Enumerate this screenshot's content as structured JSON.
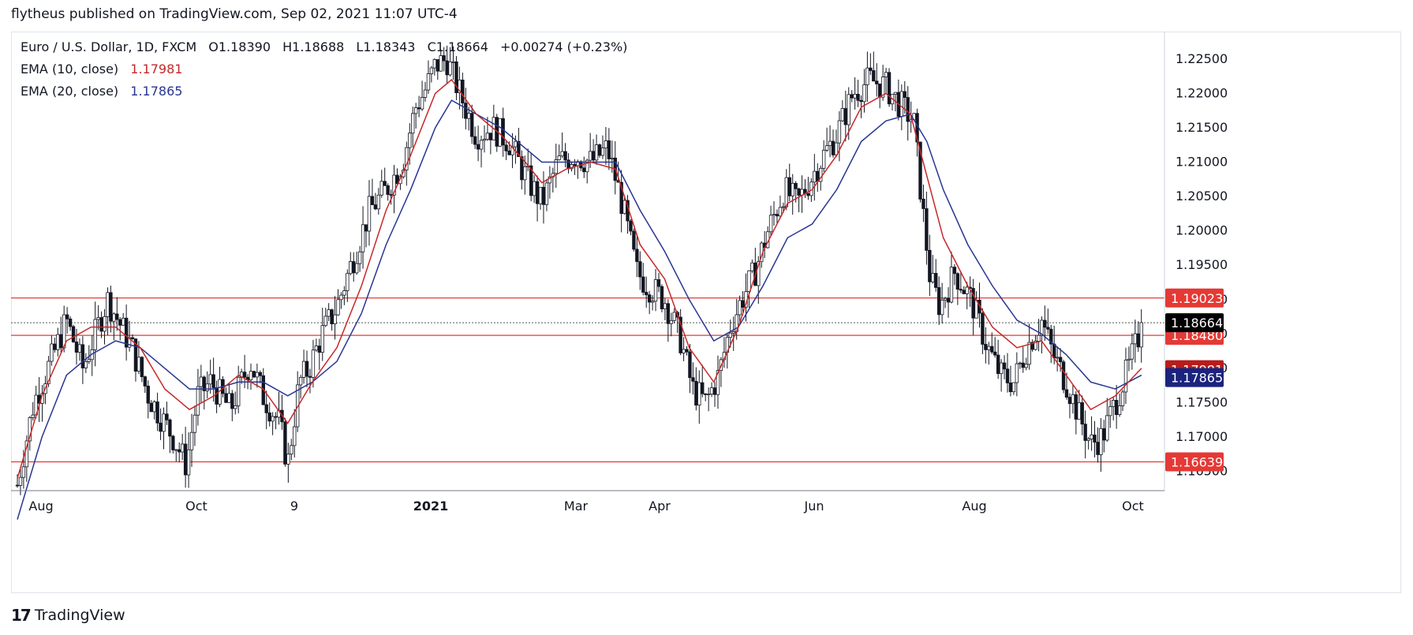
{
  "publisher_line": "flytheus published on TradingView.com, Sep 02, 2021 11:07 UTC-4",
  "footer": {
    "logo": "17",
    "brand": "TradingView"
  },
  "legend": {
    "symbol": "Euro / U.S. Dollar, 1D, FXCM",
    "open": "O1.18390",
    "high": "H1.18688",
    "low": "L1.18343",
    "close": "C1.18664",
    "change": "+0.00274 (+0.23%)",
    "ema10_label": "EMA (10, close)",
    "ema10_value": "1.17981",
    "ema20_label": "EMA (20, close)",
    "ema20_value": "1.17865"
  },
  "colors": {
    "ema10": "#c62828",
    "ema20": "#283593",
    "hline": "#e53935",
    "last": "#000000",
    "candle": "#131722",
    "ema10_tag": "#b71c1c",
    "ema20_tag": "#1a237e"
  },
  "chart_data": {
    "type": "candlestick",
    "symbol": "EURUSD",
    "timeframe": "1D",
    "y_axis_ticks": [
      "1.22500",
      "1.22000",
      "1.21500",
      "1.21000",
      "1.20500",
      "1.20000",
      "1.19500",
      "1.19000",
      "1.18500",
      "1.18000",
      "1.17500",
      "1.17000",
      "1.16500"
    ],
    "y_range": [
      1.1622,
      1.229
    ],
    "x_axis_labels": [
      "Aug",
      "Oct",
      "9",
      "2021",
      "Mar",
      "Apr",
      "Jun",
      "Aug",
      "Oct"
    ],
    "horizontal_levels": [
      {
        "value": 1.19023,
        "label": "1.19023"
      },
      {
        "value": 1.1848,
        "label": "1.18480"
      },
      {
        "value": 1.16639,
        "label": "1.16639"
      }
    ],
    "last_price": {
      "value": 1.18664,
      "label": "1.18664"
    },
    "ema_tags": [
      {
        "name": "EMA (10, close)",
        "value": 1.17981,
        "label": "1.17981"
      },
      {
        "name": "EMA (20, close)",
        "value": 1.17865,
        "label": "1.17865"
      }
    ],
    "close_path": [
      [
        0,
        1.163
      ],
      [
        10,
        1.175
      ],
      [
        22,
        1.182
      ],
      [
        30,
        1.187
      ],
      [
        40,
        1.18
      ],
      [
        55,
        1.19
      ],
      [
        70,
        1.183
      ],
      [
        80,
        1.176
      ],
      [
        95,
        1.17
      ],
      [
        103,
        1.166
      ],
      [
        110,
        1.176
      ],
      [
        118,
        1.178
      ],
      [
        130,
        1.174
      ],
      [
        142,
        1.181
      ],
      [
        150,
        1.176
      ],
      [
        160,
        1.172
      ],
      [
        165,
        1.166
      ],
      [
        172,
        1.178
      ],
      [
        178,
        1.18
      ],
      [
        186,
        1.185
      ],
      [
        195,
        1.189
      ],
      [
        205,
        1.196
      ],
      [
        215,
        1.203
      ],
      [
        225,
        1.206
      ],
      [
        235,
        1.21
      ],
      [
        243,
        1.218
      ],
      [
        248,
        1.22
      ],
      [
        255,
        1.224
      ],
      [
        262,
        1.225
      ],
      [
        270,
        1.22
      ],
      [
        280,
        1.214
      ],
      [
        290,
        1.215
      ],
      [
        300,
        1.213
      ],
      [
        310,
        1.208
      ],
      [
        320,
        1.204
      ],
      [
        330,
        1.21
      ],
      [
        340,
        1.211
      ],
      [
        350,
        1.21
      ],
      [
        360,
        1.212
      ],
      [
        368,
        1.205
      ],
      [
        378,
        1.194
      ],
      [
        385,
        1.192
      ],
      [
        395,
        1.19
      ],
      [
        405,
        1.184
      ],
      [
        412,
        1.177
      ],
      [
        420,
        1.175
      ],
      [
        428,
        1.179
      ],
      [
        435,
        1.186
      ],
      [
        442,
        1.19
      ],
      [
        450,
        1.194
      ],
      [
        458,
        1.2
      ],
      [
        468,
        1.206
      ],
      [
        476,
        1.204
      ],
      [
        485,
        1.208
      ],
      [
        492,
        1.211
      ],
      [
        500,
        1.214
      ],
      [
        510,
        1.22
      ],
      [
        520,
        1.222
      ],
      [
        530,
        1.221
      ],
      [
        540,
        1.218
      ],
      [
        547,
        1.216
      ],
      [
        552,
        1.204
      ],
      [
        557,
        1.193
      ],
      [
        563,
        1.189
      ],
      [
        572,
        1.194
      ],
      [
        582,
        1.19
      ],
      [
        592,
        1.183
      ],
      [
        600,
        1.179
      ],
      [
        608,
        1.178
      ],
      [
        616,
        1.183
      ],
      [
        625,
        1.187
      ],
      [
        632,
        1.182
      ],
      [
        640,
        1.178
      ],
      [
        648,
        1.173
      ],
      [
        655,
        1.169
      ],
      [
        662,
        1.17
      ],
      [
        670,
        1.175
      ],
      [
        678,
        1.18
      ],
      [
        686,
        1.186
      ]
    ],
    "ema10_path": [
      [
        0,
        1.164
      ],
      [
        15,
        1.176
      ],
      [
        30,
        1.184
      ],
      [
        45,
        1.186
      ],
      [
        60,
        1.186
      ],
      [
        75,
        1.183
      ],
      [
        90,
        1.177
      ],
      [
        105,
        1.174
      ],
      [
        120,
        1.176
      ],
      [
        135,
        1.179
      ],
      [
        150,
        1.177
      ],
      [
        165,
        1.172
      ],
      [
        180,
        1.178
      ],
      [
        195,
        1.183
      ],
      [
        210,
        1.192
      ],
      [
        225,
        1.203
      ],
      [
        240,
        1.211
      ],
      [
        255,
        1.22
      ],
      [
        265,
        1.222
      ],
      [
        280,
        1.217
      ],
      [
        295,
        1.214
      ],
      [
        310,
        1.21
      ],
      [
        320,
        1.207
      ],
      [
        335,
        1.209
      ],
      [
        350,
        1.21
      ],
      [
        365,
        1.209
      ],
      [
        380,
        1.198
      ],
      [
        395,
        1.193
      ],
      [
        410,
        1.183
      ],
      [
        425,
        1.178
      ],
      [
        440,
        1.186
      ],
      [
        455,
        1.197
      ],
      [
        470,
        1.204
      ],
      [
        485,
        1.206
      ],
      [
        500,
        1.211
      ],
      [
        515,
        1.218
      ],
      [
        530,
        1.22
      ],
      [
        545,
        1.217
      ],
      [
        555,
        1.208
      ],
      [
        565,
        1.199
      ],
      [
        580,
        1.192
      ],
      [
        595,
        1.186
      ],
      [
        610,
        1.183
      ],
      [
        625,
        1.184
      ],
      [
        640,
        1.179
      ],
      [
        655,
        1.174
      ],
      [
        670,
        1.176
      ],
      [
        686,
        1.18
      ]
    ],
    "ema20_path": [
      [
        0,
        1.158
      ],
      [
        15,
        1.17
      ],
      [
        30,
        1.179
      ],
      [
        45,
        1.182
      ],
      [
        60,
        1.184
      ],
      [
        75,
        1.183
      ],
      [
        90,
        1.18
      ],
      [
        105,
        1.177
      ],
      [
        120,
        1.177
      ],
      [
        135,
        1.178
      ],
      [
        150,
        1.178
      ],
      [
        165,
        1.176
      ],
      [
        180,
        1.178
      ],
      [
        195,
        1.181
      ],
      [
        210,
        1.188
      ],
      [
        225,
        1.198
      ],
      [
        240,
        1.206
      ],
      [
        255,
        1.215
      ],
      [
        265,
        1.219
      ],
      [
        280,
        1.217
      ],
      [
        295,
        1.215
      ],
      [
        310,
        1.212
      ],
      [
        320,
        1.21
      ],
      [
        335,
        1.21
      ],
      [
        350,
        1.21
      ],
      [
        365,
        1.21
      ],
      [
        380,
        1.203
      ],
      [
        395,
        1.197
      ],
      [
        410,
        1.19
      ],
      [
        425,
        1.184
      ],
      [
        440,
        1.186
      ],
      [
        455,
        1.192
      ],
      [
        470,
        1.199
      ],
      [
        485,
        1.201
      ],
      [
        500,
        1.206
      ],
      [
        515,
        1.213
      ],
      [
        530,
        1.216
      ],
      [
        545,
        1.217
      ],
      [
        555,
        1.213
      ],
      [
        565,
        1.206
      ],
      [
        580,
        1.198
      ],
      [
        595,
        1.192
      ],
      [
        610,
        1.187
      ],
      [
        625,
        1.185
      ],
      [
        640,
        1.182
      ],
      [
        655,
        1.178
      ],
      [
        670,
        1.177
      ],
      [
        686,
        1.179
      ]
    ],
    "x_domain": [
      0,
      700
    ]
  }
}
